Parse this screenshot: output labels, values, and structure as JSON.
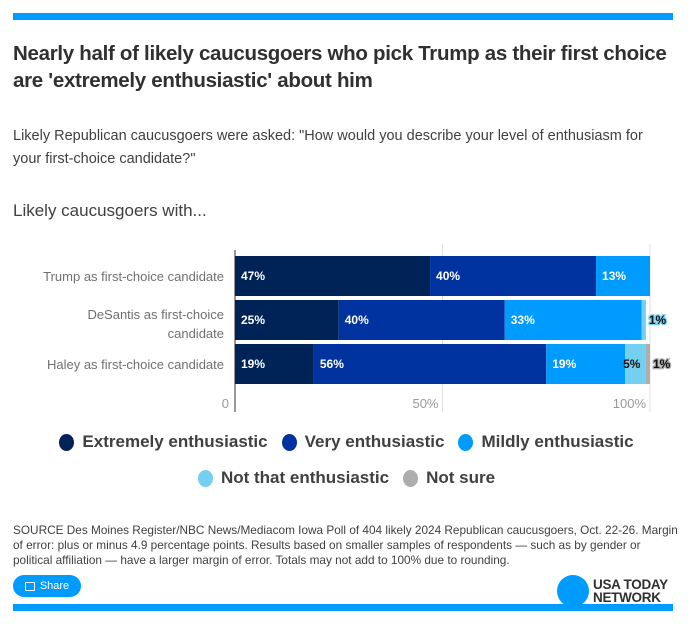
{
  "header": {
    "title": "Nearly half of likely caucusgoers who pick Trump as their first choice are 'extremely enthusiastic' about him",
    "subtitle": "Likely Republican caucusgoers were asked: \"How would you describe your level of enthusiasm for your first-choice candidate?\"",
    "lede": "Likely caucusgoers with..."
  },
  "chart_data": {
    "type": "bar",
    "orientation": "horizontal",
    "stacked": true,
    "title": "Nearly half of likely caucusgoers who pick Trump as their first choice are 'extremely enthusiastic' about him",
    "categories": [
      "Trump as first-choice candidate",
      "DeSantis as first-choice candidate",
      "Haley as first-choice candidate"
    ],
    "series": [
      {
        "name": "Extremely enthusiastic",
        "color": "#002357",
        "values": [
          47,
          25,
          19
        ]
      },
      {
        "name": "Very enthusiastic",
        "color": "#00339f",
        "values": [
          40,
          40,
          56
        ]
      },
      {
        "name": "Mildly enthusiastic",
        "color": "#009bff",
        "values": [
          13,
          33,
          19
        ]
      },
      {
        "name": "Not that enthusiastic",
        "color": "#75cff0",
        "values": [
          0,
          1,
          5
        ]
      },
      {
        "name": "Not sure",
        "color": "#adadad",
        "values": [
          0,
          0,
          1
        ]
      }
    ],
    "xlim": [
      0,
      100
    ],
    "xticks": [
      "0",
      "50%",
      "100%"
    ],
    "grid": true,
    "legend": "bottom"
  },
  "footer": {
    "source": "SOURCE Des Moines Register/NBC News/Mediacom Iowa Poll of 404 likely 2024 Republican caucusgoers, Oct. 22-26. Margin of error: plus or minus 4.9 percentage points. Results based on smaller samples of respondents — such as by gender or political affiliation — have a larger margin of error. Totals may not add to 100% due to rounding.",
    "share_label": "Share",
    "logo_line1": "USA TODAY",
    "logo_line2": "NETWORK"
  }
}
